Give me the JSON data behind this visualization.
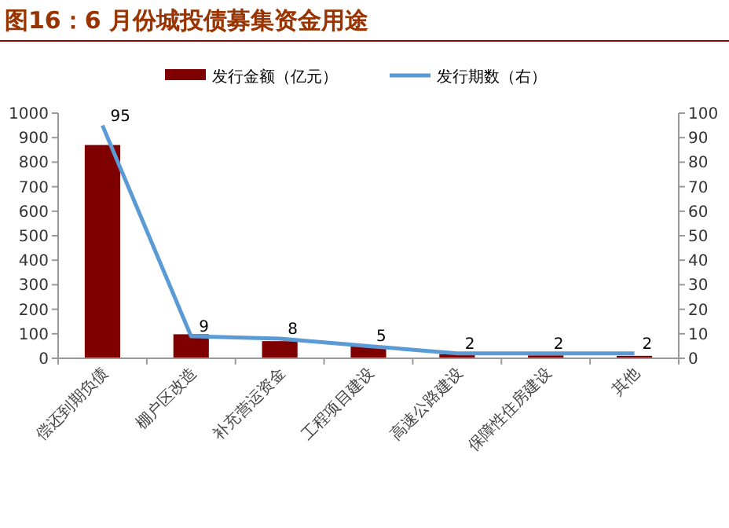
{
  "chart_data": {
    "type": "bar",
    "title": "图16：6 月份城投债募集资金用途",
    "categories": [
      "偿还到期负债",
      "棚户区改造",
      "补充营运资金",
      "工程项目建设",
      "高速公路建设",
      "保障性住房建设",
      "其他"
    ],
    "series": [
      {
        "name": "发行金额（亿元）",
        "color": "#7f0000",
        "values": [
          870,
          98,
          70,
          50,
          17,
          12,
          10
        ]
      },
      {
        "name": "发行期数（右）",
        "type": "line",
        "axis": "y2",
        "color": "#5b9bd5",
        "values": [
          95,
          9,
          8,
          5,
          2,
          2,
          2
        ],
        "value_labels": [
          "95",
          "9",
          "8",
          "5",
          "2",
          "2",
          "2"
        ]
      }
    ],
    "ylim": [
      0,
      1000
    ],
    "yticks": [
      0,
      100,
      200,
      300,
      400,
      500,
      600,
      700,
      800,
      900,
      1000
    ],
    "y2lim": [
      0,
      100
    ],
    "y2ticks": [
      0,
      10,
      20,
      30,
      40,
      50,
      60,
      70,
      80,
      90,
      100
    ],
    "legend": "top",
    "marker": "none"
  }
}
